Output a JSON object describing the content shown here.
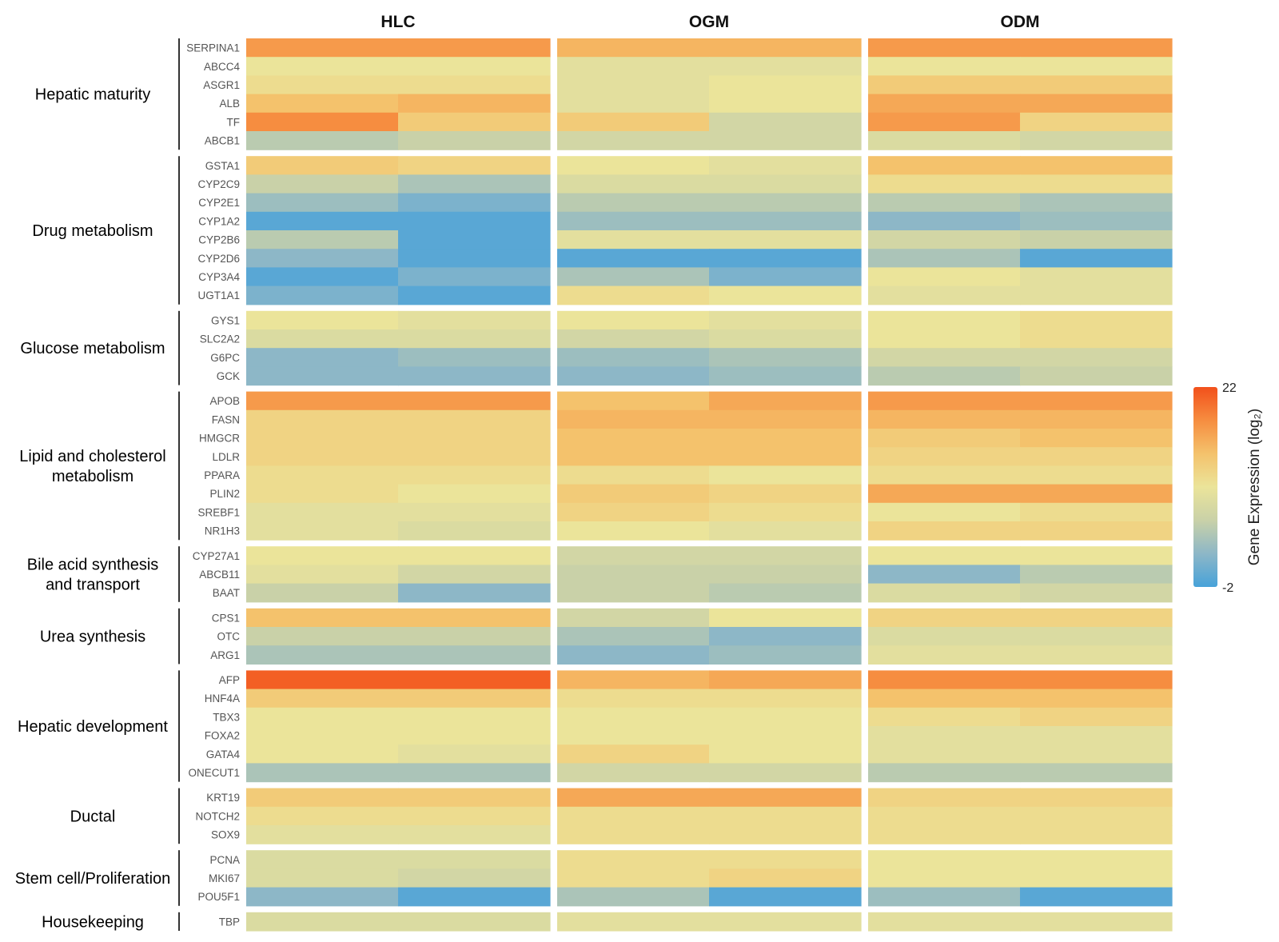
{
  "chart_data": {
    "type": "heatmap",
    "panels": [
      "HLC",
      "OGM",
      "ODM"
    ],
    "replicates_per_panel": 2,
    "colorbar": {
      "title": "Gene Expression (log₂)",
      "min": -2,
      "max": 22,
      "min_label": "-2",
      "max_label": "22",
      "colors": [
        "#47a2d9",
        "#8db7c7",
        "#c9d1a8",
        "#ebe49a",
        "#f4c26c",
        "#f68d40",
        "#f2501b"
      ]
    },
    "groups": [
      {
        "name": "Hepatic maturity",
        "genes": [
          {
            "gene": "SERPINA1",
            "values": [
              17,
              17,
              15,
              15,
              17,
              17
            ]
          },
          {
            "gene": "ABCC4",
            "values": [
              10,
              10,
              9,
              9,
              10,
              10
            ]
          },
          {
            "gene": "ASGR1",
            "values": [
              11,
              11,
              9,
              10,
              13,
              13
            ]
          },
          {
            "gene": "ALB",
            "values": [
              14,
              15,
              9,
              10,
              16,
              16
            ]
          },
          {
            "gene": "TF",
            "values": [
              18,
              13,
              13,
              7,
              17,
              12
            ]
          },
          {
            "gene": "ABCB1",
            "values": [
              5,
              6,
              7,
              7,
              8,
              7
            ]
          }
        ]
      },
      {
        "name": "Drug metabolism",
        "genes": [
          {
            "gene": "GSTA1",
            "values": [
              13,
              12,
              10,
              9,
              14,
              14
            ]
          },
          {
            "gene": "CYP2C9",
            "values": [
              6,
              4,
              8,
              8,
              11,
              11
            ]
          },
          {
            "gene": "CYP2E1",
            "values": [
              3,
              1,
              5,
              5,
              5,
              4
            ]
          },
          {
            "gene": "CYP1A2",
            "values": [
              -1,
              -1,
              3,
              3,
              2,
              3
            ]
          },
          {
            "gene": "CYP2B6",
            "values": [
              5,
              -1,
              9,
              9,
              7,
              6
            ]
          },
          {
            "gene": "CYP2D6",
            "values": [
              2,
              -1,
              -1,
              -1,
              4,
              -1
            ]
          },
          {
            "gene": "CYP3A4",
            "values": [
              -1,
              1,
              4,
              1,
              10,
              9
            ]
          },
          {
            "gene": "UGT1A1",
            "values": [
              1,
              -1,
              11,
              10,
              9,
              9
            ]
          }
        ]
      },
      {
        "name": "Glucose metabolism",
        "genes": [
          {
            "gene": "GYS1",
            "values": [
              10,
              9,
              10,
              9,
              10,
              11
            ]
          },
          {
            "gene": "SLC2A2",
            "values": [
              8,
              8,
              7,
              8,
              10,
              11
            ]
          },
          {
            "gene": "G6PC",
            "values": [
              2,
              3,
              3,
              4,
              7,
              7
            ]
          },
          {
            "gene": "GCK",
            "values": [
              2,
              2,
              2,
              3,
              5,
              6
            ]
          }
        ]
      },
      {
        "name": "Lipid and cholesterol\nmetabolism",
        "genes": [
          {
            "gene": "APOB",
            "values": [
              17,
              17,
              14,
              16,
              17,
              17
            ]
          },
          {
            "gene": "FASN",
            "values": [
              12,
              12,
              15,
              15,
              15,
              15
            ]
          },
          {
            "gene": "HMGCR",
            "values": [
              12,
              12,
              14,
              14,
              13,
              14
            ]
          },
          {
            "gene": "LDLR",
            "values": [
              12,
              12,
              14,
              14,
              12,
              12
            ]
          },
          {
            "gene": "PPARA",
            "values": [
              11,
              11,
              11,
              10,
              11,
              11
            ]
          },
          {
            "gene": "PLIN2",
            "values": [
              11,
              10,
              13,
              12,
              16,
              16
            ]
          },
          {
            "gene": "SREBF1",
            "values": [
              9,
              9,
              12,
              11,
              10,
              11
            ]
          },
          {
            "gene": "NR1H3",
            "values": [
              9,
              8,
              10,
              9,
              12,
              12
            ]
          }
        ]
      },
      {
        "name": "Bile acid synthesis\nand transport",
        "genes": [
          {
            "gene": "CYP27A1",
            "values": [
              10,
              10,
              7,
              7,
              10,
              10
            ]
          },
          {
            "gene": "ABCB11",
            "values": [
              9,
              7,
              6,
              6,
              2,
              5
            ]
          },
          {
            "gene": "BAAT",
            "values": [
              6,
              2,
              6,
              5,
              8,
              7
            ]
          }
        ]
      },
      {
        "name": "Urea synthesis",
        "genes": [
          {
            "gene": "CPS1",
            "values": [
              14,
              14,
              7,
              10,
              12,
              12
            ]
          },
          {
            "gene": "OTC",
            "values": [
              6,
              6,
              4,
              2,
              8,
              8
            ]
          },
          {
            "gene": "ARG1",
            "values": [
              4,
              4,
              2,
              3,
              9,
              9
            ]
          }
        ]
      },
      {
        "name": "Hepatic development",
        "genes": [
          {
            "gene": "AFP",
            "values": [
              21,
              21,
              15,
              16,
              18,
              18
            ]
          },
          {
            "gene": "HNF4A",
            "values": [
              13,
              13,
              11,
              11,
              14,
              14
            ]
          },
          {
            "gene": "TBX3",
            "values": [
              10,
              10,
              10,
              10,
              11,
              12
            ]
          },
          {
            "gene": "FOXA2",
            "values": [
              10,
              10,
              10,
              10,
              9,
              9
            ]
          },
          {
            "gene": "GATA4",
            "values": [
              10,
              9,
              12,
              10,
              9,
              9
            ]
          },
          {
            "gene": "ONECUT1",
            "values": [
              4,
              4,
              7,
              7,
              5,
              5
            ]
          }
        ]
      },
      {
        "name": "Ductal",
        "genes": [
          {
            "gene": "KRT19",
            "values": [
              13,
              13,
              16,
              16,
              12,
              12
            ]
          },
          {
            "gene": "NOTCH2",
            "values": [
              11,
              11,
              11,
              11,
              11,
              11
            ]
          },
          {
            "gene": "SOX9",
            "values": [
              9,
              9,
              11,
              11,
              11,
              11
            ]
          }
        ]
      },
      {
        "name": "Stem cell/Proliferation",
        "genes": [
          {
            "gene": "PCNA",
            "values": [
              8,
              8,
              11,
              11,
              10,
              10
            ]
          },
          {
            "gene": "MKI67",
            "values": [
              8,
              7,
              11,
              12,
              10,
              10
            ]
          },
          {
            "gene": "POU5F1",
            "values": [
              2,
              -1,
              4,
              -1,
              3,
              -1
            ]
          }
        ]
      },
      {
        "name": "Housekeeping",
        "genes": [
          {
            "gene": "TBP",
            "values": [
              8,
              8,
              9,
              9,
              9,
              9
            ]
          }
        ]
      }
    ]
  }
}
